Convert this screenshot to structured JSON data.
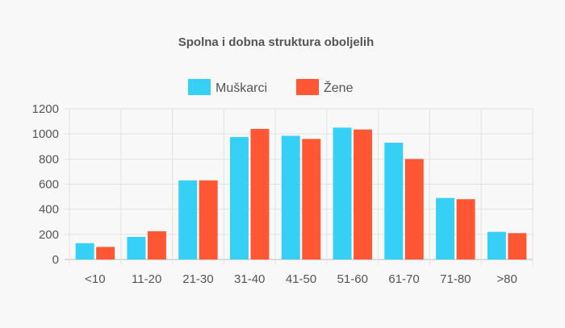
{
  "chart_data": {
    "type": "bar",
    "title": "Spolna i dobna struktura oboljelih",
    "categories": [
      "<10",
      "11-20",
      "21-30",
      "31-40",
      "41-50",
      "51-60",
      "61-70",
      "71-80",
      ">80"
    ],
    "series": [
      {
        "name": "Muškarci",
        "color": "#36cff5",
        "values": [
          130,
          180,
          630,
          975,
          985,
          1050,
          930,
          490,
          220
        ]
      },
      {
        "name": "Žene",
        "color": "#ff5733",
        "values": [
          100,
          225,
          630,
          1040,
          960,
          1035,
          800,
          480,
          210
        ]
      }
    ],
    "ylim": [
      0,
      1200
    ],
    "yticks": [
      0,
      200,
      400,
      600,
      800,
      1000,
      1200
    ],
    "xlabel": "",
    "ylabel": "",
    "grid": true,
    "legend_position": "top"
  }
}
